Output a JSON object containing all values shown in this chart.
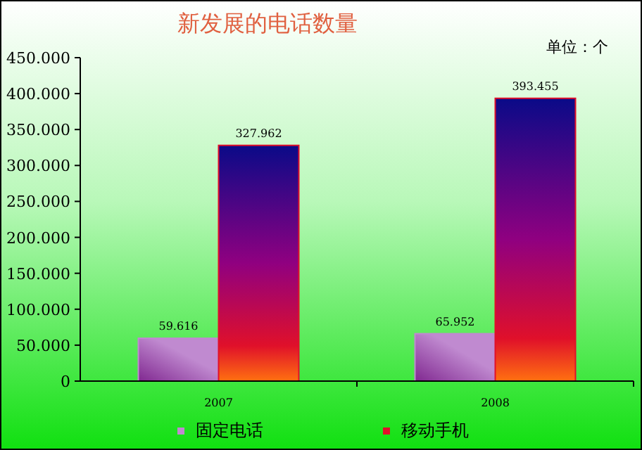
{
  "chart_data": {
    "type": "bar",
    "title": "新发展的电话数量",
    "annotations": [
      "单位：个"
    ],
    "categories": [
      "2007",
      "2008"
    ],
    "series": [
      {
        "name": "固定电话",
        "color": "#c08ad0",
        "values": [
          59616,
          65952
        ],
        "value_labels": [
          "59.616",
          "65.952"
        ]
      },
      {
        "name": "移动手机",
        "color": "#e0102a",
        "values": [
          327962,
          393455
        ],
        "value_labels": [
          "327.962",
          "393.455"
        ]
      }
    ],
    "ylim": [
      0,
      450000
    ],
    "yticks": [
      0,
      {
        "value": 50000,
        "label": "50.000"
      },
      {
        "value": 100000,
        "label": "100.000"
      },
      {
        "value": 150000,
        "label": "150.000"
      },
      {
        "value": 200000,
        "label": "200.000"
      },
      {
        "value": 250000,
        "label": "250.000"
      },
      {
        "value": 300000,
        "label": "300.000"
      },
      {
        "value": 350000,
        "label": "350.000"
      },
      {
        "value": 400000,
        "label": "400.000"
      },
      {
        "value": 450000,
        "label": "450.000"
      }
    ],
    "grid": false,
    "legend": "bottom"
  }
}
